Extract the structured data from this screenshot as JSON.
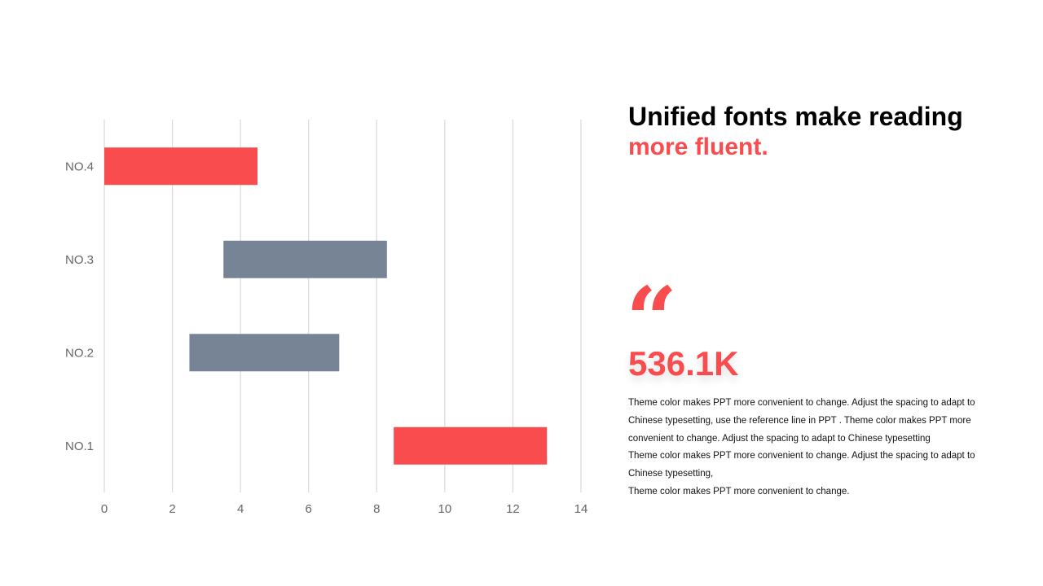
{
  "colors": {
    "accent": "#f94c4e",
    "neutral_bar": "#778495",
    "grid": "#d9d9d9",
    "axis_text": "#666666"
  },
  "chart_data": {
    "type": "bar",
    "orientation": "horizontal-floating",
    "categories": [
      "NO.1",
      "NO.2",
      "NO.3",
      "NO.4"
    ],
    "bars": [
      {
        "category": "NO.1",
        "start": 8.5,
        "end": 13.0,
        "color": "accent"
      },
      {
        "category": "NO.2",
        "start": 2.5,
        "end": 6.9,
        "color": "neutral_bar"
      },
      {
        "category": "NO.3",
        "start": 3.5,
        "end": 8.3,
        "color": "neutral_bar"
      },
      {
        "category": "NO.4",
        "start": 0.0,
        "end": 4.5,
        "color": "accent"
      }
    ],
    "xlim": [
      0,
      14
    ],
    "xticks": [
      "0",
      "2",
      "4",
      "6",
      "8",
      "10",
      "12",
      "14"
    ],
    "grid": "vertical",
    "legend": "none"
  },
  "text": {
    "headline_line1": "Unified fonts make reading",
    "headline_line2": "more fluent.",
    "quote_mark": "“",
    "stat_value": "536.1K",
    "paragraphs": [
      "Theme color makes PPT more convenient to change. Adjust the spacing to adapt to Chinese typesetting, use the reference line in PPT . Theme color makes PPT more convenient to change. Adjust the spacing to adapt to Chinese typesetting",
      "Theme color makes PPT more convenient to change. Adjust the spacing to adapt to Chinese typesetting,",
      "Theme color makes PPT more convenient to change."
    ]
  }
}
